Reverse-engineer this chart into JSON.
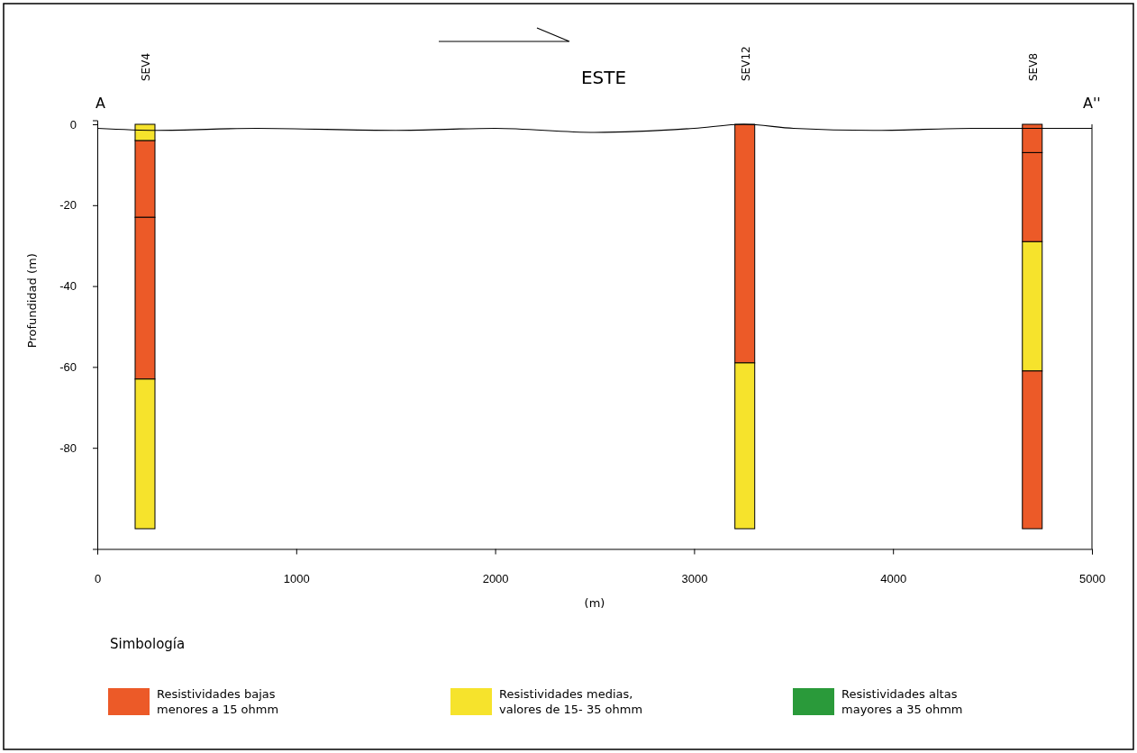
{
  "chart_data": {
    "type": "bar",
    "xlabel": "(m)",
    "ylabel": "Profundidad (m)",
    "legend_title": "Simbología",
    "legend": "bottom",
    "x": [
      240,
      3255,
      4700
    ],
    "xlim": [
      0,
      5000
    ],
    "xticks": [
      0,
      1000,
      2000,
      3000,
      4000,
      5000
    ],
    "ylim": [
      -105,
      1
    ],
    "yticks": [
      0,
      -20,
      -40,
      -60,
      -80
    ],
    "series": [
      {
        "name": "Resistividades bajas\nmenores a 15 ohmm",
        "color": "#ec5a28",
        "base": [
          -4,
          0,
          0
        ],
        "values": [
          -19,
          -59,
          -7
        ]
      },
      {
        "name": "Resistividades medias,\nvalores de 15- 35 ohmm",
        "color": "#f6e32c",
        "base": [
          0,
          -59,
          -29
        ],
        "values": [
          -4,
          -41,
          -32
        ]
      },
      {
        "name": "Resistividades altas\nmayores a 35 ohmm",
        "color": "#2a9a3a",
        "base": [
          null,
          null,
          null
        ],
        "values": [
          null,
          null,
          null
        ]
      },
      {
        "color": "#ec5a28",
        "base": [
          -23,
          null,
          -7
        ],
        "values": [
          -40,
          null,
          -22
        ]
      },
      {
        "color": "#f6e32c",
        "base": [
          -63,
          null,
          null
        ],
        "values": [
          -37,
          null,
          null
        ]
      },
      {
        "color": "#ec5a28",
        "base": [
          null,
          null,
          -61
        ],
        "values": [
          null,
          null,
          -39
        ]
      },
      {
        "type": "line",
        "color": "#000000",
        "x": [
          0,
          300,
          800,
          1500,
          2000,
          2500,
          3000,
          3250,
          3500,
          3900,
          4400,
          5000
        ],
        "values": [
          -1,
          -1.5,
          -1,
          -1.5,
          -1,
          -2,
          -1,
          0,
          -1,
          -1.5,
          -1,
          -1
        ]
      }
    ],
    "annotations": [
      "SEV4",
      "SEV12",
      "SEV8",
      "A",
      "A''",
      "ESTE"
    ]
  }
}
